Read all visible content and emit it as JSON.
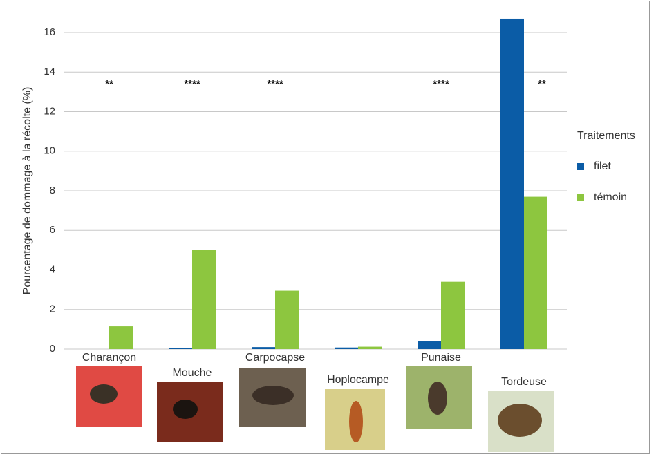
{
  "chart_data": {
    "type": "bar",
    "y_label": "Pourcentage de dommage à la récolte (%)",
    "categories": [
      "Charançon",
      "Mouche",
      "Carpocapse",
      "Hoplocampe",
      "Punaise",
      "Tordeuse"
    ],
    "series": [
      {
        "name": "filet",
        "color": "#0b5ca6",
        "values": [
          0,
          0.07,
          0.1,
          0.08,
          0.4,
          16.7
        ]
      },
      {
        "name": "témoin",
        "color": "#8dc63f",
        "values": [
          1.15,
          5.0,
          2.95,
          0.12,
          3.4,
          7.7
        ]
      }
    ],
    "annotations": [
      "**",
      "****",
      "****",
      null,
      "****",
      "**"
    ],
    "legend_title": "Traitements",
    "legend_position": "right",
    "ylim": [
      0,
      16
    ],
    "yticks": [
      0,
      2,
      4,
      6,
      8,
      10,
      12,
      14,
      16
    ],
    "grid": true
  }
}
